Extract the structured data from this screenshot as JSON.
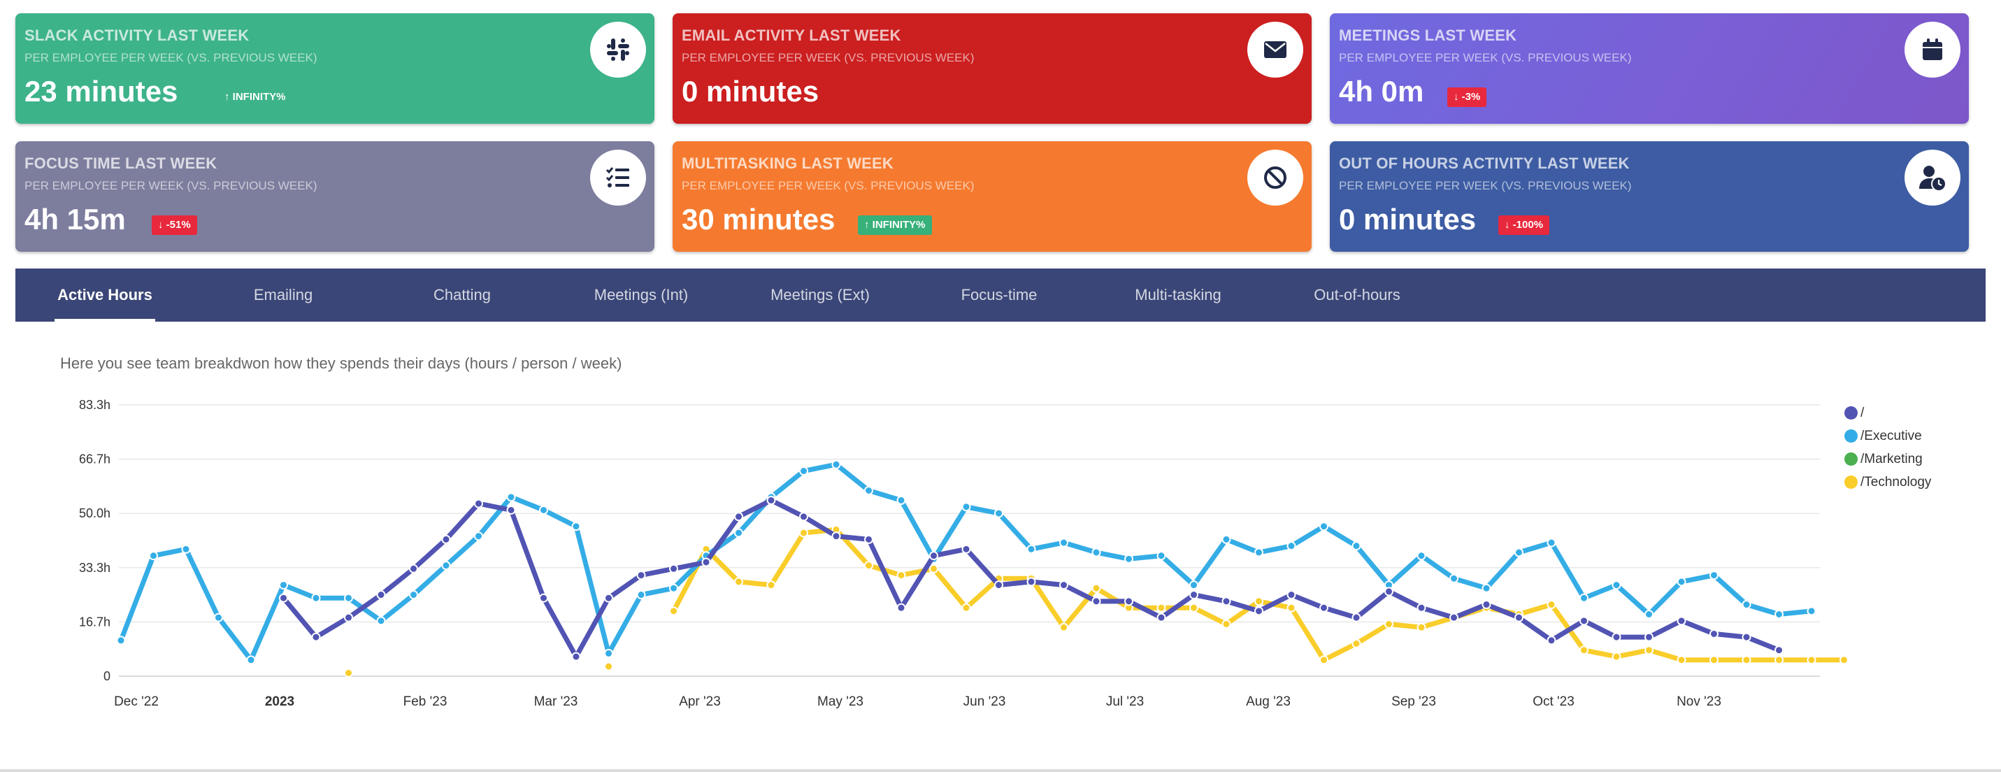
{
  "cards": [
    {
      "title": "SLACK ACTIVITY LAST WEEK",
      "subtitle": "PER EMPLOYEE PER WEEK (VS. PREVIOUS WEEK)",
      "value": "23 minutes",
      "change": "INFINITY%",
      "change_dir": "up",
      "badge": "plain",
      "icon": "slack-icon",
      "color": "#3db38a"
    },
    {
      "title": "EMAIL ACTIVITY LAST WEEK",
      "subtitle": "PER EMPLOYEE PER WEEK (VS. PREVIOUS WEEK)",
      "value": "0 minutes",
      "change": "",
      "change_dir": "",
      "badge": "none",
      "icon": "envelope-icon",
      "color": "#cc1f20"
    },
    {
      "title": "MEETINGS LAST WEEK",
      "subtitle": "PER EMPLOYEE PER WEEK (VS. PREVIOUS WEEK)",
      "value": "4h 0m",
      "change": "-3%",
      "change_dir": "down",
      "badge": "red",
      "icon": "calendar-icon",
      "color": "#7360d8"
    },
    {
      "title": "FOCUS TIME LAST WEEK",
      "subtitle": "PER EMPLOYEE PER WEEK (VS. PREVIOUS WEEK)",
      "value": "4h 15m",
      "change": "-51%",
      "change_dir": "down",
      "badge": "red",
      "icon": "checklist-icon",
      "color": "#7d7e9e"
    },
    {
      "title": "MULTITASKING LAST WEEK",
      "subtitle": "PER EMPLOYEE PER WEEK (VS. PREVIOUS WEEK)",
      "value": "30 minutes",
      "change": "INFINITY%",
      "change_dir": "up",
      "badge": "green",
      "icon": "ban-icon",
      "color": "#f57a2f"
    },
    {
      "title": "OUT OF HOURS ACTIVITY LAST WEEK",
      "subtitle": "PER EMPLOYEE PER WEEK (VS. PREVIOUS WEEK)",
      "value": "0 minutes",
      "change": "-100%",
      "change_dir": "down",
      "badge": "red",
      "icon": "user-clock-icon",
      "color": "#3d5ca3"
    }
  ],
  "tabs": [
    "Active Hours",
    "Emailing",
    "Chatting",
    "Meetings (Int)",
    "Meetings (Ext)",
    "Focus-time",
    "Multi-tasking",
    "Out-of-hours"
  ],
  "active_tab": 0,
  "description": "Here you see team breakdwon how they spends their days (hours / person / week)",
  "chart_data": {
    "type": "line",
    "y_ticks": [
      "0",
      "16.7h",
      "33.3h",
      "50.0h",
      "66.7h",
      "83.3h"
    ],
    "ylim": [
      0,
      83.3
    ],
    "x_ticks": [
      "Dec '22",
      "2023",
      "Feb '23",
      "Mar '23",
      "Apr '23",
      "May '23",
      "Jun '23",
      "Jul '23",
      "Aug '23",
      "Sep '23",
      "Oct '23",
      "Nov '23"
    ],
    "grid": true,
    "legend_position": "right",
    "series": [
      {
        "name": "/",
        "color": "#5154b3",
        "points": [
          [
            5,
            24
          ],
          [
            6,
            12
          ],
          [
            7,
            18
          ],
          [
            8,
            25
          ],
          [
            9,
            33
          ],
          [
            10,
            42
          ],
          [
            11,
            53
          ],
          [
            12,
            51
          ],
          [
            13,
            24
          ],
          [
            14,
            6
          ],
          [
            15,
            24
          ],
          [
            16,
            31
          ],
          [
            17,
            33
          ],
          [
            18,
            35
          ],
          [
            19,
            49
          ],
          [
            20,
            54
          ],
          [
            21,
            49
          ],
          [
            22,
            43
          ],
          [
            23,
            42
          ],
          [
            24,
            21
          ],
          [
            25,
            37
          ],
          [
            26,
            39
          ],
          [
            27,
            28
          ],
          [
            28,
            29
          ],
          [
            29,
            28
          ],
          [
            30,
            23
          ],
          [
            31,
            23
          ],
          [
            32,
            18
          ],
          [
            33,
            25
          ],
          [
            34,
            23
          ],
          [
            35,
            20
          ],
          [
            36,
            25
          ],
          [
            37,
            21
          ],
          [
            38,
            18
          ],
          [
            39,
            26
          ],
          [
            40,
            21
          ],
          [
            41,
            18
          ],
          [
            42,
            22
          ],
          [
            43,
            18
          ],
          [
            44,
            11
          ],
          [
            45,
            17
          ],
          [
            46,
            12
          ],
          [
            47,
            12
          ],
          [
            48,
            17
          ],
          [
            49,
            13
          ],
          [
            50,
            12
          ],
          [
            51,
            8
          ]
        ]
      },
      {
        "name": "/Executive",
        "color": "#34ade6",
        "points": [
          [
            0,
            11
          ],
          [
            1,
            37
          ],
          [
            2,
            39
          ],
          [
            3,
            18
          ],
          [
            4,
            5
          ],
          [
            5,
            28
          ],
          [
            6,
            24
          ],
          [
            7,
            24
          ],
          [
            8,
            17
          ],
          [
            9,
            25
          ],
          [
            10,
            34
          ],
          [
            11,
            43
          ],
          [
            12,
            55
          ],
          [
            13,
            51
          ],
          [
            14,
            46
          ],
          [
            15,
            7
          ],
          [
            16,
            25
          ],
          [
            17,
            27
          ],
          [
            18,
            37
          ],
          [
            19,
            44
          ],
          [
            20,
            55
          ],
          [
            21,
            63
          ],
          [
            22,
            65
          ],
          [
            23,
            57
          ],
          [
            24,
            54
          ],
          [
            25,
            36
          ],
          [
            26,
            52
          ],
          [
            27,
            50
          ],
          [
            28,
            39
          ],
          [
            29,
            41
          ],
          [
            30,
            38
          ],
          [
            31,
            36
          ],
          [
            32,
            37
          ],
          [
            33,
            28
          ],
          [
            34,
            42
          ],
          [
            35,
            38
          ],
          [
            36,
            40
          ],
          [
            37,
            46
          ],
          [
            38,
            40
          ],
          [
            39,
            28
          ],
          [
            40,
            37
          ],
          [
            41,
            30
          ],
          [
            42,
            27
          ],
          [
            43,
            38
          ],
          [
            44,
            41
          ],
          [
            45,
            24
          ],
          [
            46,
            28
          ],
          [
            47,
            19
          ],
          [
            48,
            29
          ],
          [
            49,
            31
          ],
          [
            50,
            22
          ],
          [
            51,
            19
          ],
          [
            52,
            20
          ]
        ]
      },
      {
        "name": "/Marketing",
        "color": "#4caf50",
        "points": []
      },
      {
        "name": "/Technology",
        "color": "#f9cd2a",
        "points": [
          [
            7,
            1
          ],
          [
            15,
            3
          ],
          [
            17,
            20
          ],
          [
            18,
            39
          ],
          [
            19,
            29
          ],
          [
            20,
            28
          ],
          [
            21,
            44
          ],
          [
            22,
            45
          ],
          [
            23,
            34
          ],
          [
            24,
            31
          ],
          [
            25,
            33
          ],
          [
            26,
            21
          ],
          [
            27,
            30
          ],
          [
            28,
            30
          ],
          [
            29,
            15
          ],
          [
            30,
            27
          ],
          [
            31,
            21
          ],
          [
            32,
            21
          ],
          [
            33,
            21
          ],
          [
            34,
            16
          ],
          [
            35,
            23
          ],
          [
            36,
            21
          ],
          [
            37,
            5
          ],
          [
            38,
            10
          ],
          [
            39,
            16
          ],
          [
            40,
            15
          ],
          [
            41,
            18
          ],
          [
            42,
            21
          ],
          [
            43,
            19
          ],
          [
            44,
            22
          ],
          [
            45,
            8
          ],
          [
            46,
            6
          ],
          [
            47,
            8
          ],
          [
            48,
            5
          ],
          [
            49,
            5
          ],
          [
            50,
            5
          ],
          [
            51,
            5
          ],
          [
            52,
            5
          ],
          [
            53,
            5
          ]
        ]
      }
    ]
  }
}
